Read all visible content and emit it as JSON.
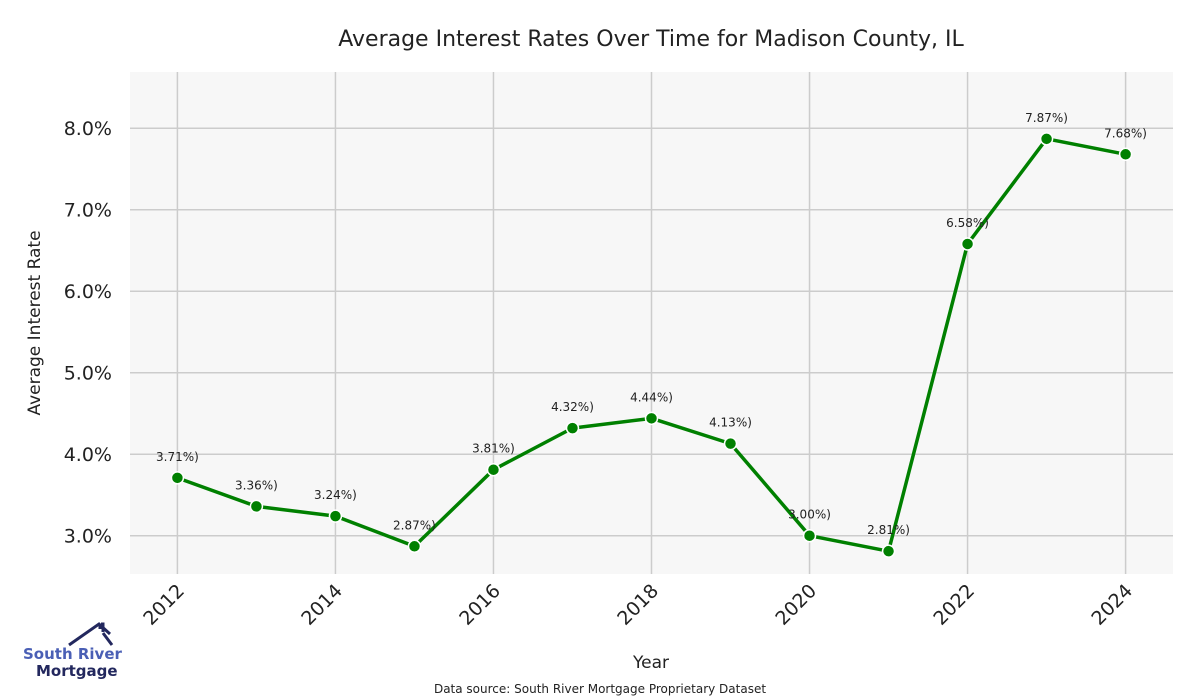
{
  "chart_data": {
    "type": "line",
    "title": "Average Interest Rates Over Time for Madison County, IL",
    "xlabel": "Year",
    "ylabel": "Average Interest Rate",
    "x": [
      2012,
      2013,
      2014,
      2015,
      2016,
      2017,
      2018,
      2019,
      2020,
      2021,
      2022,
      2023,
      2024
    ],
    "values": [
      3.71,
      3.36,
      3.24,
      2.87,
      3.81,
      4.32,
      4.44,
      4.13,
      3.0,
      2.81,
      6.58,
      7.87,
      7.68
    ],
    "data_labels": [
      "3.71%)",
      "3.36%)",
      "3.24%)",
      "2.87%)",
      "3.81%)",
      "4.32%)",
      "4.44%)",
      "4.13%)",
      "3.00%)",
      "2.81%)",
      "6.58%)",
      "7.87%)",
      "7.68%)"
    ],
    "xticks": [
      "2012",
      "2014",
      "2016",
      "2018",
      "2020",
      "2022",
      "2024"
    ],
    "yticks": [
      "3.0%",
      "4.0%",
      "5.0%",
      "6.0%",
      "7.0%",
      "8.0%"
    ],
    "ytick_values": [
      3,
      4,
      5,
      6,
      7,
      8
    ],
    "xlim": [
      2011.4,
      2024.6
    ],
    "ylim": [
      2.53,
      8.69
    ],
    "grid": true,
    "line_color": "#008000",
    "background": "#f7f7f7"
  },
  "footer": {
    "source": "Data source: South River Mortgage Proprietary Dataset"
  },
  "logo": {
    "line1": "South River",
    "line2": "Mortgage"
  }
}
